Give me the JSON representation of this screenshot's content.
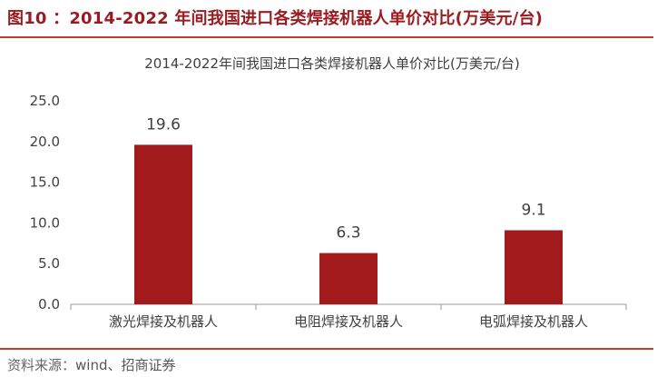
{
  "figure": {
    "label": "图10 ：",
    "title": "2014-2022 年间我国进口各类焊接机器人单价对比(万美元/台)"
  },
  "source": {
    "prefix": "资料来源：",
    "text": "wind、招商证券"
  },
  "colors": {
    "accent": "#9b1b20",
    "bar": "#a31a1d",
    "rule": "#c23b2b"
  },
  "chart_data": {
    "type": "bar",
    "title": "2014-2022年间我国进口各类焊接机器人单价对比(万美元/台)",
    "categories": [
      "激光焊接及机器人",
      "电阻焊接及机器人",
      "电弧焊接及机器人"
    ],
    "values": [
      19.6,
      6.3,
      9.1
    ],
    "data_labels": [
      "19.6",
      "6.3",
      "9.1"
    ],
    "ylim": [
      0,
      25
    ],
    "yticks": [
      "0.0",
      "5.0",
      "10.0",
      "15.0",
      "20.0",
      "25.0"
    ],
    "xlabel": "",
    "ylabel": "",
    "grid": false,
    "legend": false
  }
}
